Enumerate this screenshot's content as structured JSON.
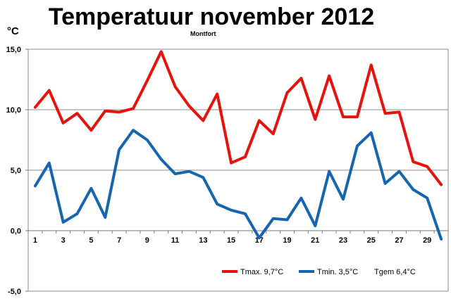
{
  "chart_data": {
    "type": "line",
    "title": "Temperatuur november 2012",
    "subtitle": "Montfort",
    "ylabel": "°C",
    "xlabel": "",
    "x": [
      1,
      2,
      3,
      4,
      5,
      6,
      7,
      8,
      9,
      10,
      11,
      12,
      13,
      14,
      15,
      16,
      17,
      18,
      19,
      20,
      21,
      22,
      23,
      24,
      25,
      26,
      27,
      28,
      29,
      30
    ],
    "x_tick_labels": [
      "1",
      "3",
      "5",
      "7",
      "9",
      "11",
      "13",
      "15",
      "17",
      "19",
      "21",
      "23",
      "25",
      "27",
      "29"
    ],
    "y_tick_labels": [
      "15,0",
      "10,0",
      "5,0",
      "0,0",
      "-5,0"
    ],
    "y_ticks": [
      15,
      10,
      5,
      0,
      -5
    ],
    "ylim": [
      -5,
      15
    ],
    "grid": true,
    "legend_position": "bottom-right",
    "series": [
      {
        "name": "Tmax. 9,7°C",
        "color": "#e8120c",
        "values": [
          10.2,
          11.6,
          8.9,
          9.7,
          8.3,
          9.9,
          9.8,
          10.1,
          12.4,
          14.8,
          11.9,
          10.3,
          9.1,
          11.3,
          5.6,
          6.1,
          9.1,
          8.0,
          11.4,
          12.6,
          9.2,
          12.8,
          9.4,
          9.4,
          13.7,
          9.7,
          9.8,
          5.7,
          5.3,
          3.8
        ]
      },
      {
        "name": "Tmin. 3,5°C",
        "color": "#1565b0",
        "values": [
          3.7,
          5.6,
          0.7,
          1.4,
          3.5,
          1.1,
          6.7,
          8.3,
          7.5,
          5.9,
          4.7,
          4.9,
          4.4,
          2.2,
          1.7,
          1.4,
          -0.6,
          1.0,
          0.9,
          2.7,
          0.4,
          4.9,
          2.6,
          7.0,
          8.1,
          3.9,
          4.9,
          3.4,
          2.7,
          -0.7
        ]
      }
    ],
    "legend_extra": "Tgem 6,4°C"
  }
}
